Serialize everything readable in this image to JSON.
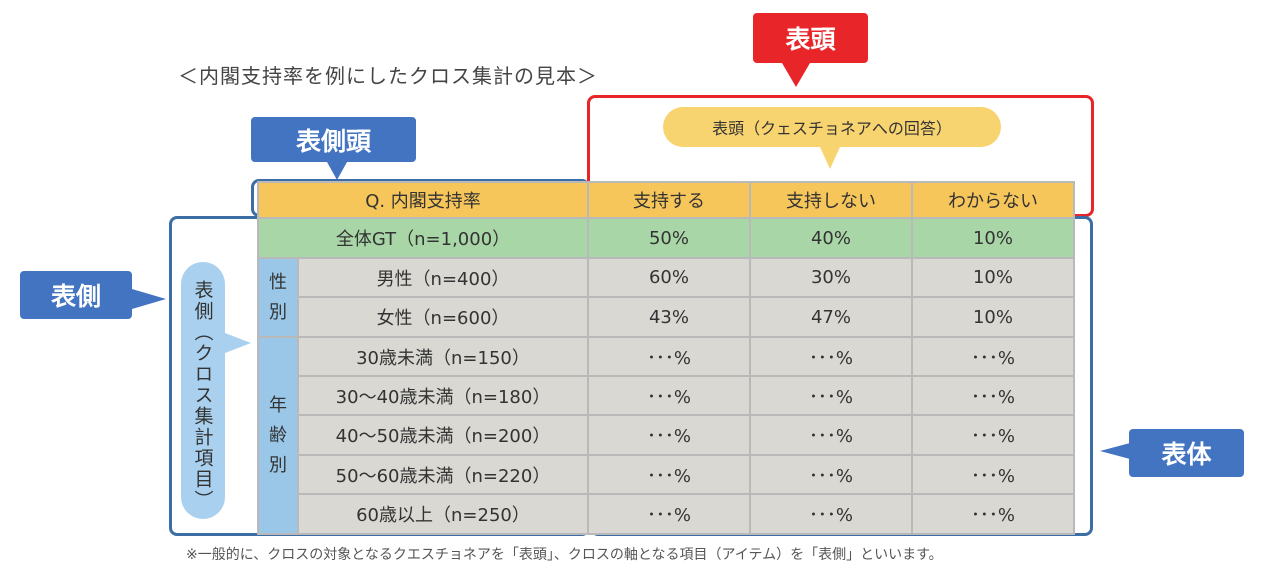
{
  "title": "＜内閣支持率を例にしたクロス集計の見本＞",
  "footnote": "※一般的に、クロスの対象となるクエスチョネアを「表頭」、クロスの軸となる項目（アイテム）を「表側」といいます。",
  "callouts": {
    "hyoto": "表頭",
    "hyosokuto": "表側頭",
    "hyosoku": "表側",
    "hyotai": "表体",
    "hyoto_note": "表頭（クェスチョネアへの回答）",
    "hyosoku_note": "表側（クロス集計項目）"
  },
  "table": {
    "question": "Q. 内閣支持率",
    "columns": [
      "支持する",
      "支持しない",
      "わからない"
    ],
    "total": {
      "label": "全体GT（n=1,000）",
      "values": [
        "50%",
        "40%",
        "10%"
      ]
    },
    "groups": [
      {
        "name": "性別",
        "rows": [
          {
            "label": "男性（n=400）",
            "values": [
              "60%",
              "30%",
              "10%"
            ]
          },
          {
            "label": "女性（n=600）",
            "values": [
              "43%",
              "47%",
              "10%"
            ]
          }
        ]
      },
      {
        "name": "年齢別",
        "rows": [
          {
            "label": "30歳未満（n=150）",
            "values": [
              "･･･%",
              "･･･%",
              "･･･%"
            ]
          },
          {
            "label": "30～40歳未満（n=180）",
            "values": [
              "･･･%",
              "･･･%",
              "･･･%"
            ]
          },
          {
            "label": "40～50歳未満（n=200）",
            "values": [
              "･･･%",
              "･･･%",
              "･･･%"
            ]
          },
          {
            "label": "50～60歳未満（n=220）",
            "values": [
              "･･･%",
              "･･･%",
              "･･･%"
            ]
          },
          {
            "label": "60歳以上（n=250）",
            "values": [
              "･･･%",
              "･･･%",
              "･･･%"
            ]
          }
        ]
      }
    ]
  },
  "colors": {
    "red": "#e8262a",
    "blue": "#4374c2",
    "header_yellow": "#f6c65a",
    "total_green": "#a9d6a7",
    "cell_grey": "#d9d8d3",
    "group_blue": "#9ac7e8"
  }
}
